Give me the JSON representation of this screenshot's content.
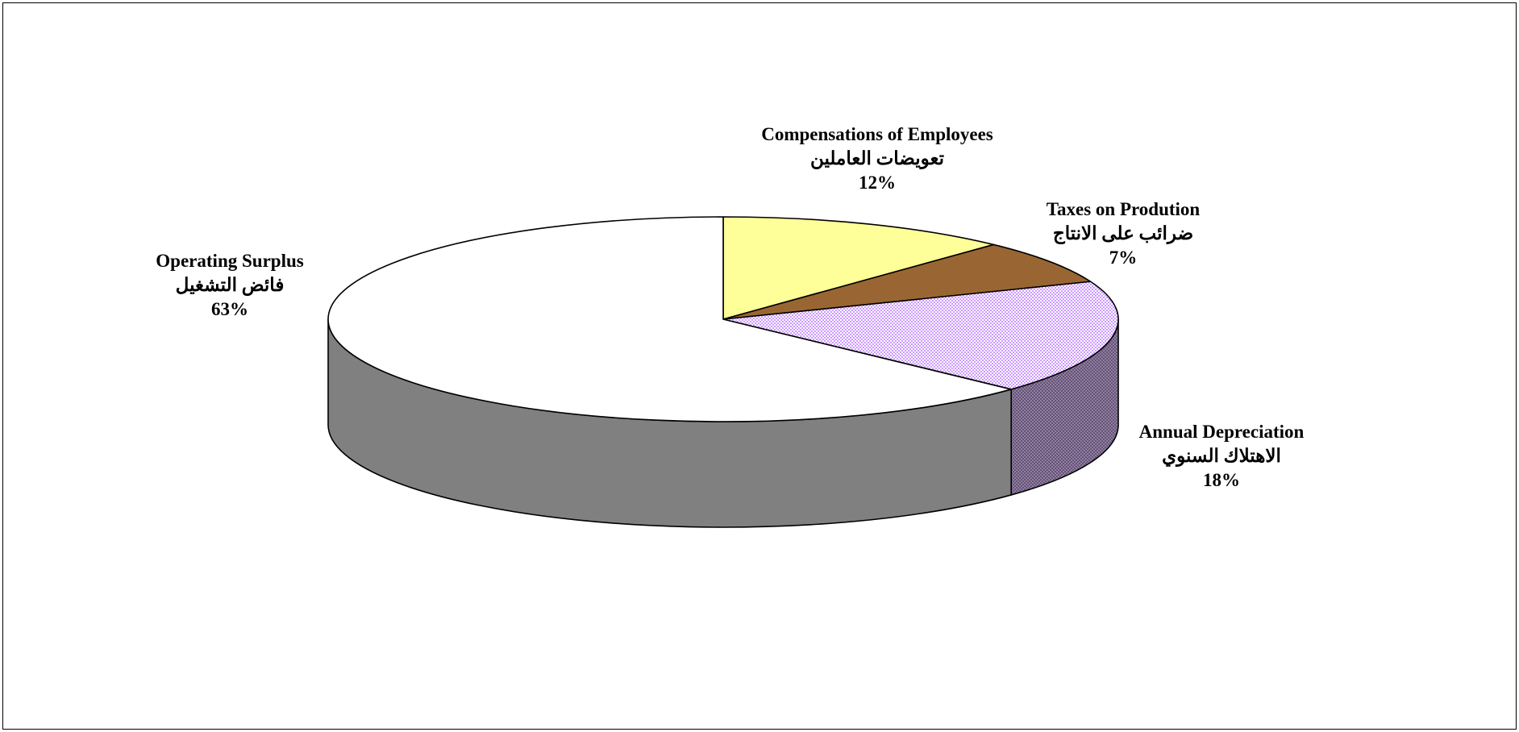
{
  "chart_data": {
    "type": "pie",
    "style": "3d",
    "start_angle": "12 o'clock",
    "direction": "clockwise",
    "slices": [
      {
        "label_en": "Compensations of Employees",
        "label_ar": "تعويضات العاملين",
        "value": 12,
        "value_label": "12%",
        "color": "#FFFF99",
        "pattern": "none"
      },
      {
        "label_en": "Taxes on Prodution",
        "label_ar": "ضرائب على الانتاج",
        "value": 7,
        "value_label": "7%",
        "color": "#996633",
        "pattern": "none"
      },
      {
        "label_en": "Annual Depreciation",
        "label_ar": "الاهتلاك السنوي",
        "value": 18,
        "value_label": "18%",
        "color": "#CC99FF",
        "pattern": "checker"
      },
      {
        "label_en": "Operating Surplus",
        "label_ar": "فائض التشغيل",
        "value": 63,
        "value_label": "63%",
        "color": "#FFFFFF",
        "pattern": "none"
      }
    ]
  }
}
